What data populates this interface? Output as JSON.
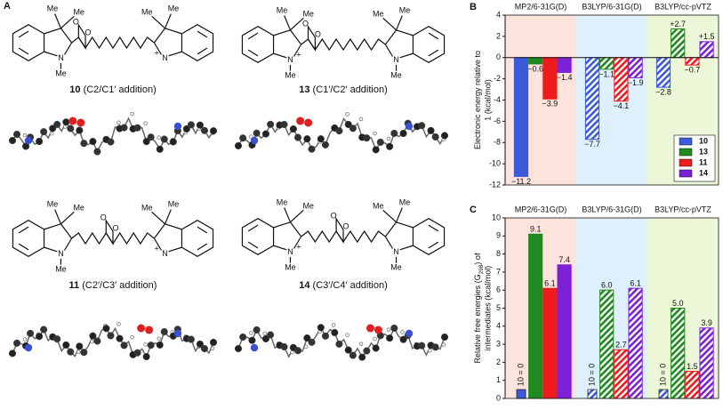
{
  "panel_label": "A",
  "structures": [
    {
      "number": "10",
      "caption": "(C2/C1′ addition)",
      "left": {
        "me": [
          "Me",
          "Me"
        ],
        "n": "N",
        "n_me": "Me"
      },
      "dioxetane": [
        "O",
        "O"
      ],
      "right": {
        "me": [
          "Me",
          "Me"
        ],
        "n": "N",
        "charge": "+"
      }
    },
    {
      "number": "13",
      "caption": "(C1′/C2′ addition)",
      "left": {
        "me": [
          "Me",
          "Me"
        ],
        "n": "N",
        "n_me": "Me",
        "charge": "+"
      },
      "dioxetane": [
        "O",
        "O"
      ],
      "right": {
        "me": [
          "Me",
          "Me"
        ],
        "n": "N",
        "n_me": "Me"
      }
    },
    {
      "number": "11",
      "caption": "(C2′/C3′ addition)",
      "left": {
        "me": [
          "Me",
          "Me"
        ],
        "n": "N",
        "n_me": "Me"
      },
      "dioxetane": [
        "O",
        "O"
      ],
      "right": {
        "me": [
          "Me",
          "Me"
        ],
        "n": "N",
        "charge": "+"
      }
    },
    {
      "number": "14",
      "caption": "(C3′/C4′ addition)",
      "left": {
        "me": [
          "Me",
          "Me"
        ],
        "n": "N",
        "n_me": "Me",
        "charge": "+"
      },
      "dioxetane": [
        "O",
        "O"
      ],
      "right": {
        "me": [
          "Me",
          "Me"
        ],
        "n": "N",
        "n_me": "Me"
      }
    }
  ],
  "chart_data": [
    {
      "type": "bar",
      "panel_label": "B",
      "categories": [
        "MP2/6-31G(D)",
        "B3LYP/6-31G(D)",
        "B3LYP/cc-pVTZ"
      ],
      "y_label": {
        "parts": [
          "Electronic energy relative to"
        ],
        "line2": "1 (kcal/mol)"
      },
      "series": [
        {
          "name": "10",
          "color": "#3b5bdb",
          "values": [
            -11.2,
            -7.7,
            -2.8
          ],
          "value_labels": [
            "−11.2",
            "−7.7",
            "−2.8"
          ]
        },
        {
          "name": "13",
          "color": "#1f8a1f",
          "values": [
            -0.6,
            -1.1,
            2.7
          ],
          "value_labels": [
            "−0.6",
            "−1.1",
            "+2.7"
          ]
        },
        {
          "name": "11",
          "color": "#ee1c1c",
          "values": [
            -3.9,
            -4.1,
            -0.7
          ],
          "value_labels": [
            "−3.9",
            "−4.1",
            "−0.7"
          ]
        },
        {
          "name": "14",
          "color": "#7b22d6",
          "values": [
            -1.4,
            -1.9,
            1.5
          ],
          "value_labels": [
            "−1.4",
            "−1.9",
            "+1.5"
          ]
        }
      ],
      "ylim": [
        -12,
        4
      ],
      "yticks": [
        -12,
        -10,
        -8,
        -6,
        -4,
        -2,
        0,
        2,
        4
      ],
      "legend": "lower right",
      "band_colors": [
        "#fce4dc",
        "#def0fb",
        "#ebf7d6"
      ],
      "hatch": [
        false,
        true,
        true
      ]
    },
    {
      "type": "bar",
      "panel_label": "C",
      "categories": [
        "MP2/6-31G(D)",
        "B3LYP/6-31G(D)",
        "B3LYP/cc-pVTZ"
      ],
      "y_label": {
        "parts": [
          "Relative free energies (G",
          "298",
          ") of"
        ],
        "line2": "intermediates (kcal/mol)"
      },
      "series": [
        {
          "name": "10",
          "color": "#3b5bdb",
          "values": [
            0,
            0,
            0
          ],
          "value_labels": [
            "10 = 0",
            "10 = 0",
            "10 = 0"
          ]
        },
        {
          "name": "13",
          "color": "#1f8a1f",
          "values": [
            9.1,
            6,
            5
          ],
          "value_labels": [
            "9.1",
            "6.0",
            "5.0"
          ]
        },
        {
          "name": "11",
          "color": "#ee1c1c",
          "values": [
            6.1,
            2.7,
            1.5
          ],
          "value_labels": [
            "6.1",
            "2.7",
            "1.5"
          ]
        },
        {
          "name": "14",
          "color": "#7b22d6",
          "values": [
            7.4,
            6.1,
            3.9
          ],
          "value_labels": [
            "7.4",
            "6.1",
            "3.9"
          ]
        }
      ],
      "ylim": [
        0,
        10
      ],
      "yticks": [
        0,
        1,
        2,
        3,
        4,
        5,
        6,
        7,
        8,
        9,
        10
      ],
      "band_colors": [
        "#fce4dc",
        "#def0fb",
        "#ebf7d6"
      ],
      "hatch": [
        false,
        true,
        true
      ]
    }
  ]
}
